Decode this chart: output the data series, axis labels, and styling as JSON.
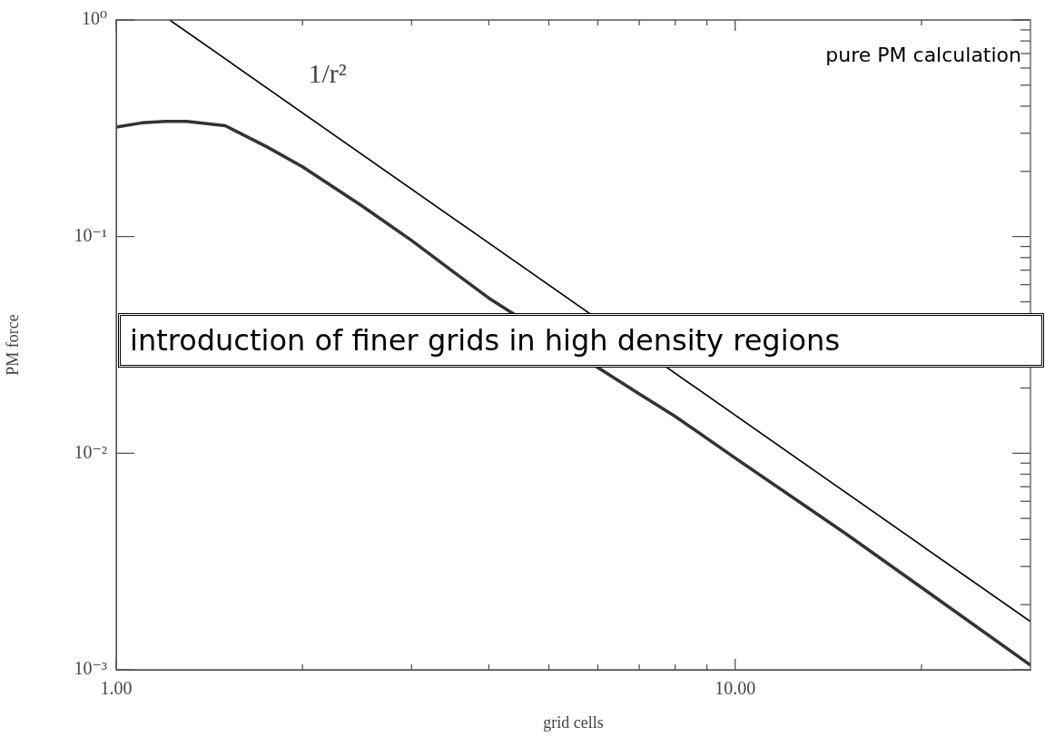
{
  "chart_data": {
    "type": "line",
    "log": "xy",
    "xlabel": "grid cells",
    "ylabel": "PM force",
    "xlim": [
      1,
      30
    ],
    "ylim": [
      0.001,
      1
    ],
    "xticks": [
      {
        "value": 1,
        "label": "1.00"
      },
      {
        "value": 2,
        "label": null
      },
      {
        "value": 3,
        "label": null
      },
      {
        "value": 4,
        "label": null
      },
      {
        "value": 5,
        "label": null
      },
      {
        "value": 6,
        "label": null
      },
      {
        "value": 7,
        "label": null
      },
      {
        "value": 8,
        "label": null
      },
      {
        "value": 9,
        "label": null
      },
      {
        "value": 10,
        "label": "10.00"
      },
      {
        "value": 20,
        "label": null
      }
    ],
    "yticks": [
      {
        "value": 0.001,
        "label": "10⁻³"
      },
      {
        "value": 0.01,
        "label": "10⁻²"
      },
      {
        "value": 0.1,
        "label": "10⁻¹"
      },
      {
        "value": 1,
        "label": "10⁰"
      }
    ],
    "grid": false,
    "legend": false,
    "marker": "none",
    "line_style": "solid",
    "series": [
      {
        "color": "#333333",
        "x": [
          1,
          1.1,
          1.2,
          1.3,
          1.5,
          1.75,
          2,
          2.5,
          3,
          3.5,
          4,
          7,
          8,
          10,
          15,
          20,
          30
        ],
        "values": [
          0.32,
          0.335,
          0.34,
          0.34,
          0.325,
          0.26,
          0.21,
          0.138,
          0.096,
          0.069,
          0.052,
          0.0188,
          0.0148,
          0.0095,
          0.0043,
          0.0024,
          0.00105
        ]
      },
      {
        "name": "1/r²",
        "color": "#000000",
        "x": [
          1.22,
          30
        ],
        "values": [
          1,
          0.00167
        ]
      }
    ],
    "annotations": [
      "pure PM calculation",
      "introduction of finer grids in high density regions"
    ]
  }
}
